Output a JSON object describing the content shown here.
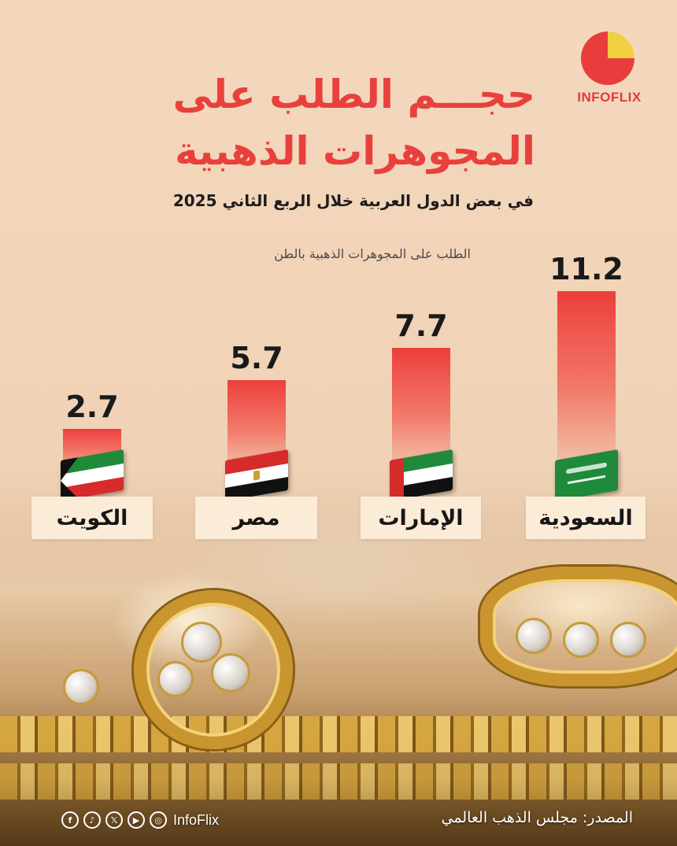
{
  "header": {
    "title_line1": "حجـــم الطلب على",
    "title_line2": "المجوهرات الذهبية",
    "subtitle": "في بعض الدول العربية خلال الربع الثاني 2025",
    "brand": "INFOFLIX"
  },
  "colors": {
    "accent": "#e8413d",
    "bar_top": "#ec3f3c",
    "background": "#f2d6bc",
    "label_box": "#fbecd8"
  },
  "chart_data": {
    "type": "bar",
    "ylabel": "الطلب على المجوهرات الذهبية بالطن",
    "categories": [
      "السعودية",
      "الإمارات",
      "مصر",
      "الكويت"
    ],
    "values": [
      11.2,
      7.7,
      5.7,
      2.7
    ],
    "value_labels": [
      "11.2",
      "7.7",
      "5.7",
      "2.7"
    ],
    "flag_icons": [
      "saudi-flag-icon",
      "uae-flag-icon",
      "egypt-flag-icon",
      "kuwait-flag-icon"
    ],
    "ylim": [
      0,
      11.2
    ],
    "grid": false,
    "legend": "none"
  },
  "footer": {
    "source": "المصدر: مجلس الذهب العالمي",
    "handle": "InfoFlix",
    "social_icons": [
      "instagram-icon",
      "youtube-icon",
      "x-icon",
      "tiktok-icon",
      "facebook-icon"
    ]
  }
}
